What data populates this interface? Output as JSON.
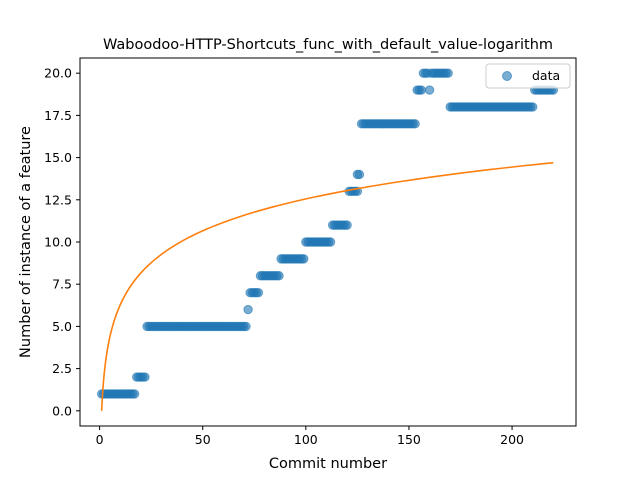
{
  "chart_data": {
    "type": "scatter",
    "title": "Waboodoo-HTTP-Shortcuts_func_with_default_value-logarithm",
    "xlabel": "Commit number",
    "ylabel": "Number of instance of a feature",
    "xlim": [
      -9.5,
      231
    ],
    "ylim": [
      -0.9,
      20.9
    ],
    "xticks": [
      0,
      50,
      100,
      150,
      200
    ],
    "xtick_labels": [
      "0",
      "50",
      "100",
      "150",
      "200"
    ],
    "yticks": [
      0,
      2.5,
      5,
      7.5,
      10,
      12.5,
      15,
      17.5,
      20
    ],
    "ytick_labels": [
      "0.0",
      "2.5",
      "5.0",
      "7.5",
      "10.0",
      "12.5",
      "15.0",
      "17.5",
      "20.0"
    ],
    "grid": false,
    "legend_position": "top-right",
    "series": [
      {
        "name": "data",
        "kind": "scatter",
        "color": "#1f77b4",
        "segments": [
          {
            "x_from": 1,
            "x_to": 17,
            "y": 1
          },
          {
            "x_from": 18,
            "x_to": 22,
            "y": 2
          },
          {
            "x_from": 23,
            "x_to": 71,
            "y": 5
          },
          {
            "x_from": 72,
            "x_to": 72,
            "y": 6
          },
          {
            "x_from": 73,
            "x_to": 77,
            "y": 7
          },
          {
            "x_from": 78,
            "x_to": 87,
            "y": 8
          },
          {
            "x_from": 88,
            "x_to": 99,
            "y": 9
          },
          {
            "x_from": 100,
            "x_to": 112,
            "y": 10
          },
          {
            "x_from": 113,
            "x_to": 120,
            "y": 11
          },
          {
            "x_from": 121,
            "x_to": 125,
            "y": 13
          },
          {
            "x_from": 125,
            "x_to": 126,
            "y": 14
          },
          {
            "x_from": 127,
            "x_to": 153,
            "y": 17
          },
          {
            "x_from": 154,
            "x_to": 156,
            "y": 19
          },
          {
            "x_from": 157,
            "x_to": 159,
            "y": 20
          },
          {
            "x_from": 160,
            "x_to": 160,
            "y": 19
          },
          {
            "x_from": 161,
            "x_to": 169,
            "y": 20
          },
          {
            "x_from": 170,
            "x_to": 210,
            "y": 18
          },
          {
            "x_from": 211,
            "x_to": 220,
            "y": 19
          }
        ]
      },
      {
        "name": "",
        "kind": "line",
        "color": "#ff7f0e",
        "model": "logarithmic",
        "x_range": [
          1,
          220
        ],
        "points": [
          {
            "x": 1,
            "y": 0
          },
          {
            "x": 5,
            "y": 4.35
          },
          {
            "x": 10,
            "y": 6.25
          },
          {
            "x": 20,
            "y": 8.15
          },
          {
            "x": 50,
            "y": 10.5
          },
          {
            "x": 100,
            "y": 12.4
          },
          {
            "x": 150,
            "y": 13.6
          },
          {
            "x": 220,
            "y": 14.7
          }
        ]
      }
    ]
  }
}
